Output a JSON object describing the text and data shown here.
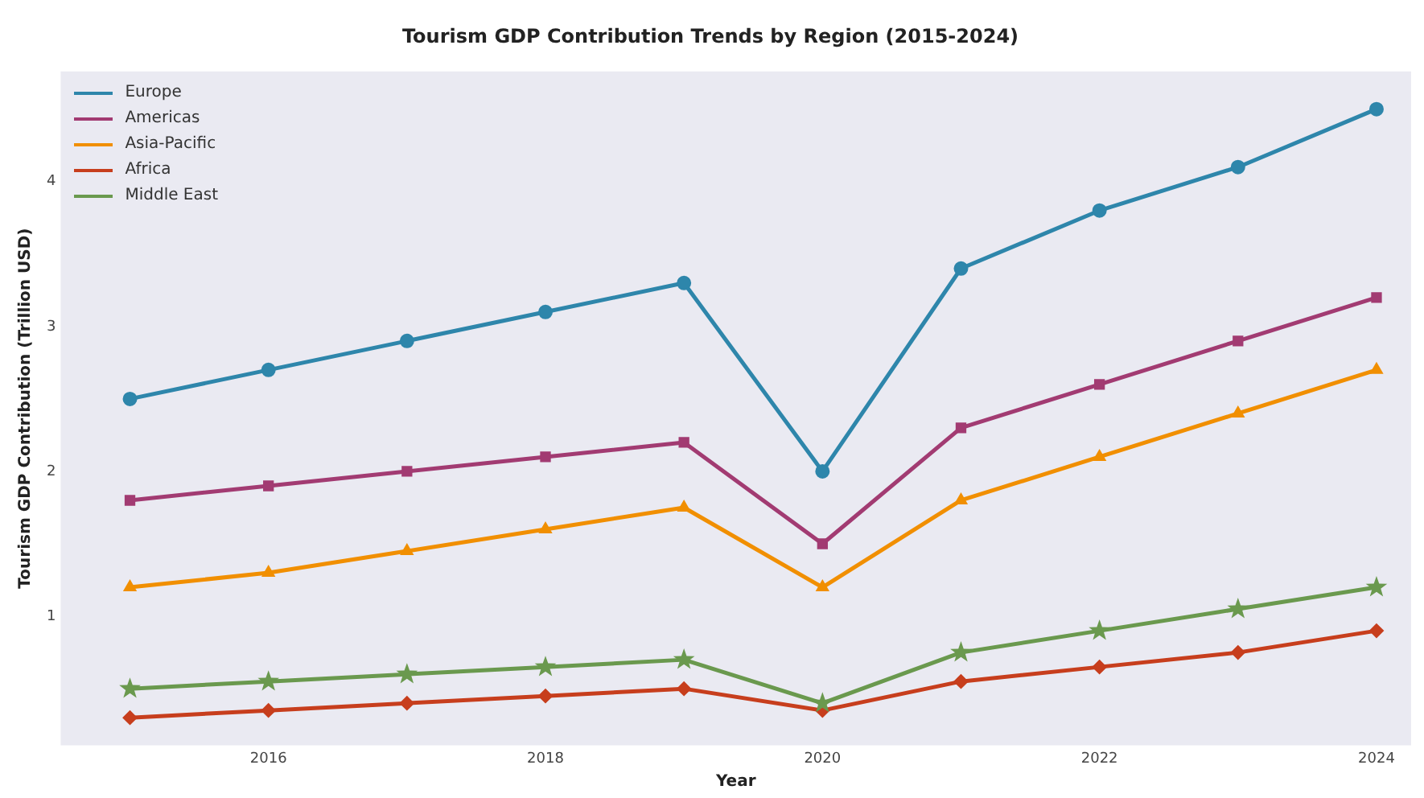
{
  "chart_data": {
    "type": "line",
    "title": "Tourism GDP Contribution Trends by Region (2015-2024)",
    "xlabel": "Year",
    "ylabel": "Tourism GDP Contribution (Trillion USD)",
    "x": [
      2015,
      2016,
      2017,
      2018,
      2019,
      2020,
      2021,
      2022,
      2023,
      2024
    ],
    "series": [
      {
        "name": "Europe",
        "color": "#2e86ab",
        "marker": "circle",
        "values": [
          2.5,
          2.7,
          2.9,
          3.1,
          3.3,
          2.0,
          3.4,
          3.8,
          4.1,
          4.5
        ]
      },
      {
        "name": "Americas",
        "color": "#a23b72",
        "marker": "square",
        "values": [
          1.8,
          1.9,
          2.0,
          2.1,
          2.2,
          1.5,
          2.3,
          2.6,
          2.9,
          3.2
        ]
      },
      {
        "name": "Asia-Pacific",
        "color": "#f18f01",
        "marker": "triangle",
        "values": [
          1.2,
          1.3,
          1.45,
          1.6,
          1.75,
          1.2,
          1.8,
          2.1,
          2.4,
          2.7
        ]
      },
      {
        "name": "Africa",
        "color": "#c73e1d",
        "marker": "diamond",
        "values": [
          0.3,
          0.35,
          0.4,
          0.45,
          0.5,
          0.35,
          0.55,
          0.65,
          0.75,
          0.9
        ]
      },
      {
        "name": "Middle East",
        "color": "#6a994e",
        "marker": "star",
        "values": [
          0.5,
          0.55,
          0.6,
          0.65,
          0.7,
          0.4,
          0.75,
          0.9,
          1.05,
          1.2
        ]
      }
    ],
    "xlim": [
      2014.5,
      2024.25
    ],
    "xticks": [
      2016,
      2018,
      2020,
      2022,
      2024
    ],
    "ylim": [
      0.11,
      4.76
    ],
    "yticks": [
      1,
      2,
      3,
      4
    ],
    "grid": false,
    "legend": "top left",
    "line_style": "solid"
  }
}
